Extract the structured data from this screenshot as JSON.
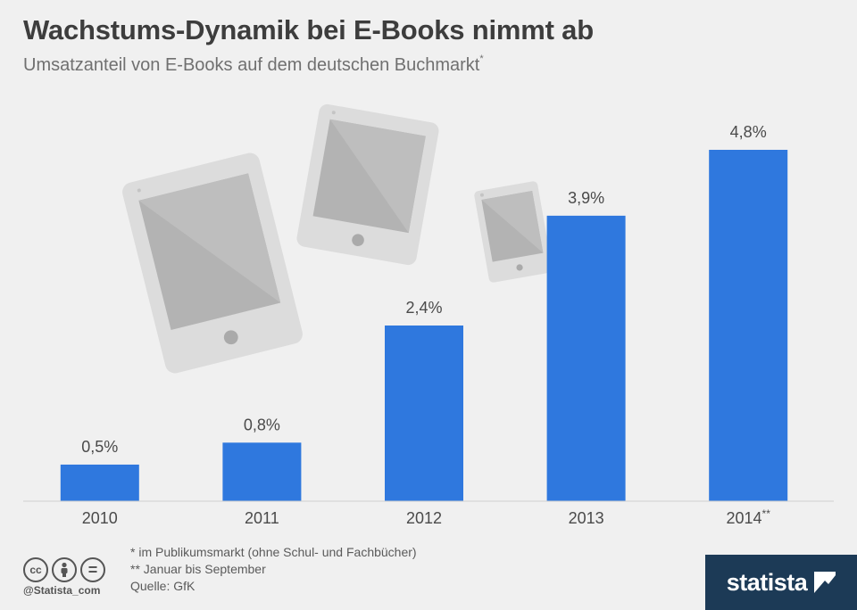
{
  "header": {
    "title": "Wachstums-Dynamik bei E-Books nimmt ab",
    "subtitle": "Umsatzanteil von E-Books auf dem deutschen Buchmarkt",
    "subtitle_mark": "*"
  },
  "chart_data": {
    "type": "bar",
    "title": "Wachstums-Dynamik bei E-Books nimmt ab",
    "subtitle": "Umsatzanteil von E-Books auf dem deutschen Buchmarkt*",
    "categories": [
      "2010",
      "2011",
      "2012",
      "2013",
      "2014**"
    ],
    "values": [
      0.5,
      0.8,
      2.4,
      3.9,
      4.8
    ],
    "value_labels": [
      "0,5%",
      "0,8%",
      "2,4%",
      "3,9%",
      "4,8%"
    ],
    "unit": "%",
    "xlabel": "",
    "ylabel": "",
    "ylim": [
      0,
      4.8
    ],
    "grid": false,
    "legend": "none",
    "bar_color": "#2f78de",
    "decoration": "tablet-icons"
  },
  "footnotes": [
    "* im Publikumsmarkt (ohne Schul- und Fachbücher)",
    "** Januar bis September",
    "Quelle: GfK"
  ],
  "license": {
    "icons": [
      "cc-icon",
      "by-person-icon",
      "nd-equals-icon"
    ],
    "labels": [
      "cc",
      "",
      "="
    ],
    "handle": "@Statista_com"
  },
  "brand": {
    "name": "statista",
    "color": "#1c3a56"
  }
}
